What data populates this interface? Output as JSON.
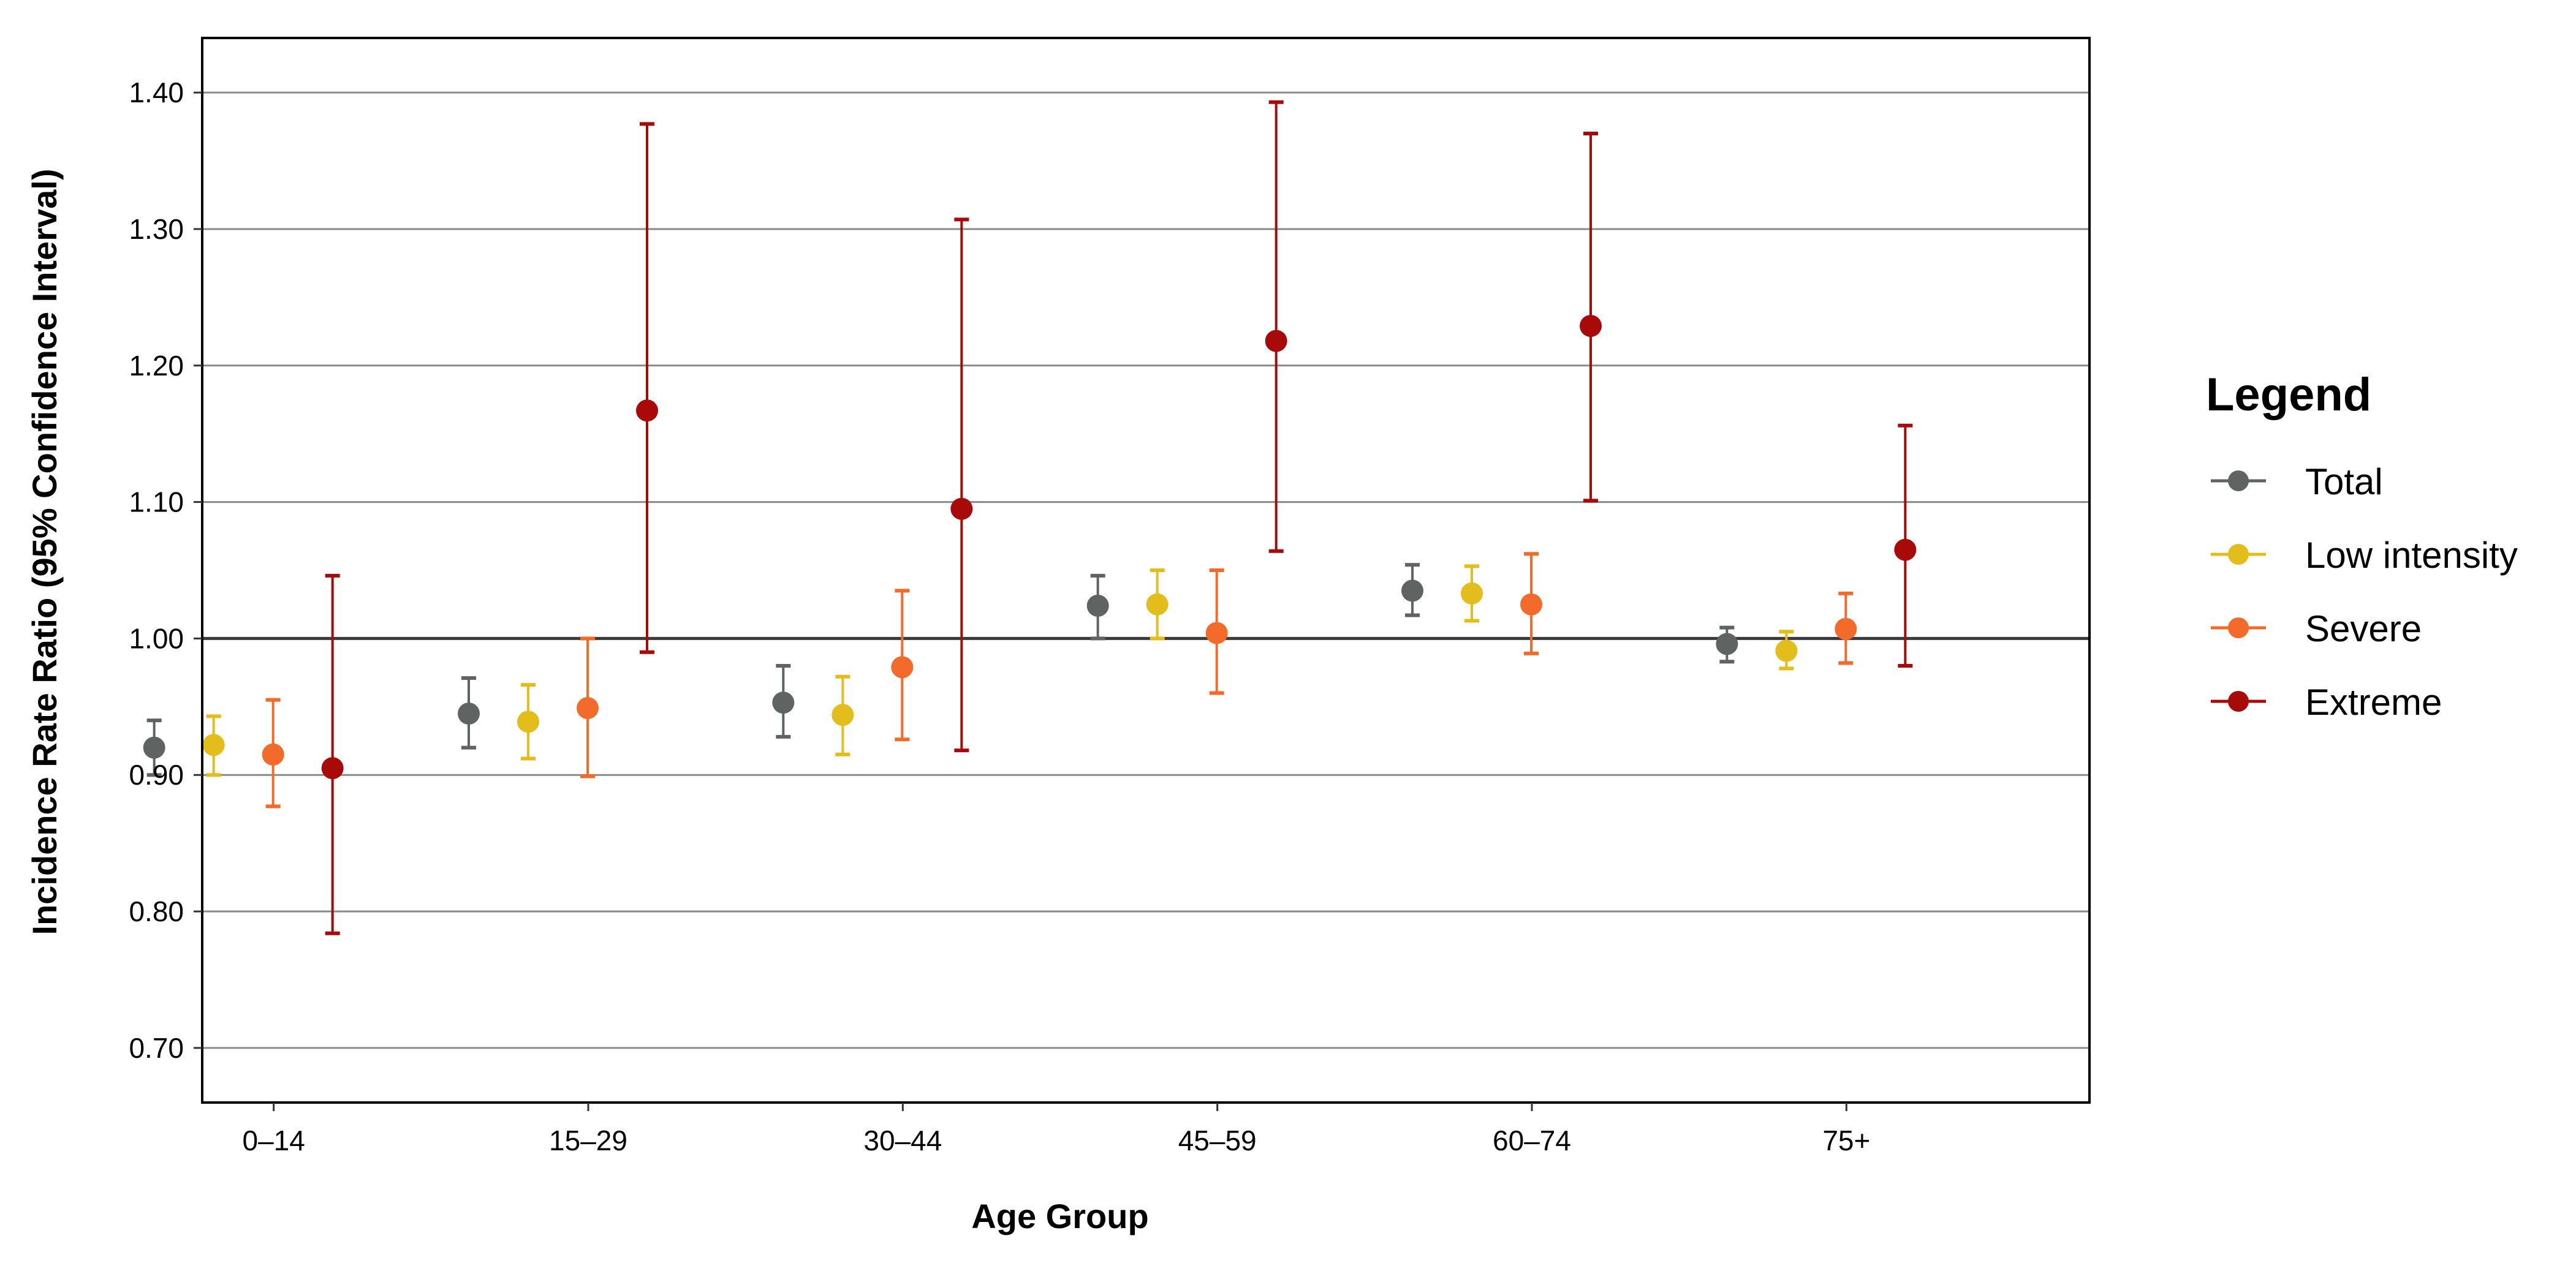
{
  "chart_data": {
    "type": "scatter",
    "title": "",
    "xlabel": "Age Group",
    "ylabel": "Incidence Rate Ratio (95% Confidence Interval)",
    "ylim": [
      0.66,
      1.44
    ],
    "yticks": [
      0.7,
      0.8,
      0.9,
      1.0,
      1.1,
      1.2,
      1.3,
      1.4
    ],
    "ytick_labels": [
      "0.70",
      "0.80",
      "0.90",
      "1.00",
      "1.10",
      "1.20",
      "1.30",
      "1.40"
    ],
    "reference_line": 1.0,
    "grid": "horizontal major",
    "categories": [
      "0–14",
      "15–29",
      "30–44",
      "45–59",
      "60–74",
      "75+"
    ],
    "legend": {
      "title": "Legend",
      "placement": "right"
    },
    "series": [
      {
        "name": "Total",
        "color": "#5f6361",
        "values": [
          0.92,
          0.945,
          0.953,
          1.024,
          1.035,
          0.996
        ],
        "lower": [
          0.9,
          0.92,
          0.928,
          1.0,
          1.017,
          0.983
        ],
        "upper": [
          0.94,
          0.971,
          0.98,
          1.046,
          1.054,
          1.008
        ]
      },
      {
        "name": "Low intensity",
        "color": "#e3bd1c",
        "values": [
          0.922,
          0.939,
          0.944,
          1.025,
          1.033,
          0.991
        ],
        "lower": [
          0.9,
          0.912,
          0.915,
          1.0,
          1.013,
          0.978
        ],
        "upper": [
          0.943,
          0.966,
          0.972,
          1.05,
          1.053,
          1.005
        ]
      },
      {
        "name": "Severe",
        "color": "#f26b2b",
        "values": [
          0.915,
          0.949,
          0.979,
          1.004,
          1.025,
          1.007
        ],
        "lower": [
          0.877,
          0.899,
          0.926,
          0.96,
          0.989,
          0.982
        ],
        "upper": [
          0.955,
          1.0,
          1.035,
          1.05,
          1.062,
          1.033
        ]
      },
      {
        "name": "Extreme",
        "color": "#a80a0a",
        "values": [
          0.905,
          1.167,
          1.095,
          1.218,
          1.229,
          1.065
        ],
        "lower": [
          0.784,
          0.99,
          0.918,
          1.064,
          1.101,
          0.98
        ],
        "upper": [
          1.046,
          1.377,
          1.307,
          1.393,
          1.37,
          1.156
        ]
      }
    ]
  }
}
